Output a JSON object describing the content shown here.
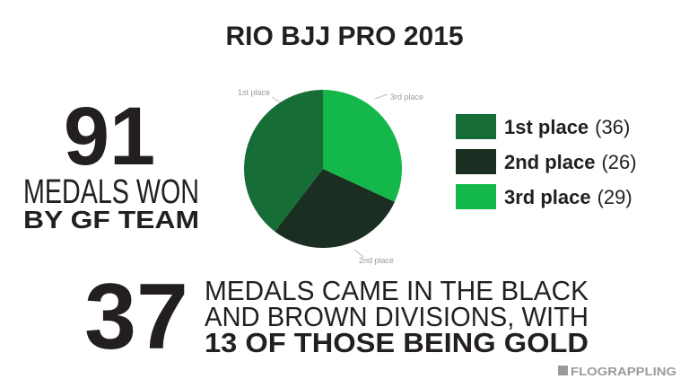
{
  "title": "RIO BJJ PRO 2015",
  "left_stat": {
    "number": 91,
    "line1": "MEDALS WON",
    "line2": "BY GF TEAM"
  },
  "chart_data": {
    "type": "pie",
    "categories": [
      "1st place",
      "2nd place",
      "3rd place"
    ],
    "values": [
      36,
      26,
      29
    ],
    "value_labels": [
      "(36)",
      "(26)",
      "(29)"
    ],
    "colors": [
      "#166d36",
      "#1b2e22",
      "#14b84a"
    ]
  },
  "bottom_stat": {
    "number": 37,
    "line1": "MEDALS CAME IN THE BLACK",
    "line2": "AND BROWN DIVISIONS, WITH",
    "line3": "13 OF THOSE BEING GOLD"
  },
  "logo": "FLOGRAPPLING"
}
